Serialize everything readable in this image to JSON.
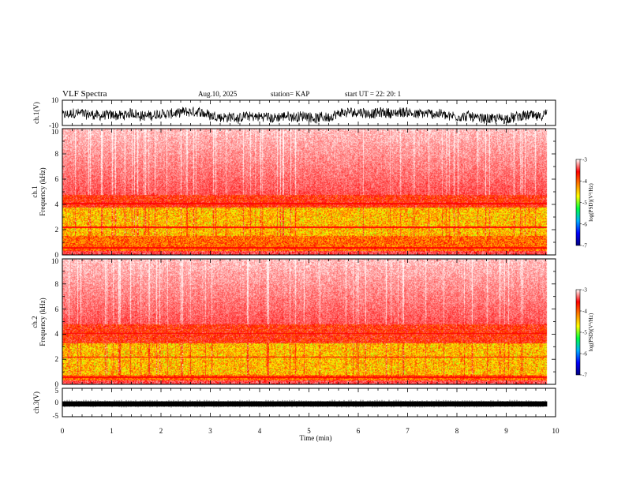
{
  "header": {
    "title": "VLF Spectra",
    "date": "Aug.10, 2025",
    "station": "station= KAP",
    "start": "start  UT  =   22: 20: 1"
  },
  "chart_data": [
    {
      "type": "line",
      "name": "ch1-waveform",
      "ylabel": "ch.1(V)",
      "ylim": [
        -10,
        10
      ],
      "yticks": [
        {
          "value": 10,
          "label": "10"
        },
        {
          "value": -10,
          "label": "-10"
        }
      ],
      "description_series": "noisy waveform amplitude roughly between -8 and 4 V"
    },
    {
      "type": "heatmap",
      "name": "ch1-spectrogram",
      "ylabel_line1": "ch.1",
      "ylabel_line2": "Frequency  (kHz)",
      "ylim": [
        0,
        10
      ],
      "yticks": [
        {
          "value": 0,
          "label": "0"
        },
        {
          "value": 2,
          "label": "2"
        },
        {
          "value": 4,
          "label": "4"
        },
        {
          "value": 6,
          "label": "6"
        },
        {
          "value": 8,
          "label": "8"
        },
        {
          "value": 10,
          "label": "10"
        }
      ],
      "xlim": [
        0,
        10
      ],
      "data_end_min": 9.83,
      "green_band_khz": [
        1.5,
        3.8
      ]
    },
    {
      "type": "heatmap",
      "name": "ch2-spectrogram",
      "ylabel_line1": "ch.2",
      "ylabel_line2": "Frequency  (kHz)",
      "ylim": [
        0,
        10
      ],
      "yticks": [
        {
          "value": 0,
          "label": "0"
        },
        {
          "value": 2,
          "label": "2"
        },
        {
          "value": 4,
          "label": "4"
        },
        {
          "value": 6,
          "label": "6"
        },
        {
          "value": 8,
          "label": "8"
        },
        {
          "value": 10,
          "label": "10"
        }
      ],
      "xlim": [
        0,
        10
      ],
      "data_end_min": 9.83,
      "green_band_khz": [
        0.8,
        3.3
      ]
    },
    {
      "type": "line",
      "name": "ch3-waveform",
      "ylabel": "ch.3(V)",
      "ylim": [
        -5,
        5
      ],
      "yticks": [
        {
          "value": 5,
          "label": "5"
        },
        {
          "value": 0,
          "label": "0"
        },
        {
          "value": -5,
          "label": "-5"
        }
      ],
      "description_series": "dense oscillation around -0.5 V with amplitude about 0.5 V"
    }
  ],
  "x_axis": {
    "label": "Time  (min)",
    "range": [
      0,
      10
    ],
    "ticks": [
      {
        "value": 0,
        "label": "0"
      },
      {
        "value": 1,
        "label": "1"
      },
      {
        "value": 2,
        "label": "2"
      },
      {
        "value": 3,
        "label": "3"
      },
      {
        "value": 4,
        "label": "4"
      },
      {
        "value": 5,
        "label": "5"
      },
      {
        "value": 6,
        "label": "6"
      },
      {
        "value": 7,
        "label": "7"
      },
      {
        "value": 8,
        "label": "8"
      },
      {
        "value": 9,
        "label": "9"
      },
      {
        "value": 10,
        "label": "10"
      }
    ]
  },
  "colorbar": {
    "label": "log(PSD)(V²/Hz)",
    "range": [
      -7,
      -3
    ],
    "ticks": [
      {
        "value": -3,
        "label": "-3"
      },
      {
        "value": -4,
        "label": "-4"
      },
      {
        "value": -5,
        "label": "-5"
      },
      {
        "value": -6,
        "label": "-6"
      },
      {
        "value": -7,
        "label": "-7"
      }
    ],
    "colors": [
      "#000080",
      "#0000ff",
      "#00b0ff",
      "#00ff40",
      "#ffff00",
      "#ff8000",
      "#ff0000",
      "#ffffff"
    ]
  }
}
